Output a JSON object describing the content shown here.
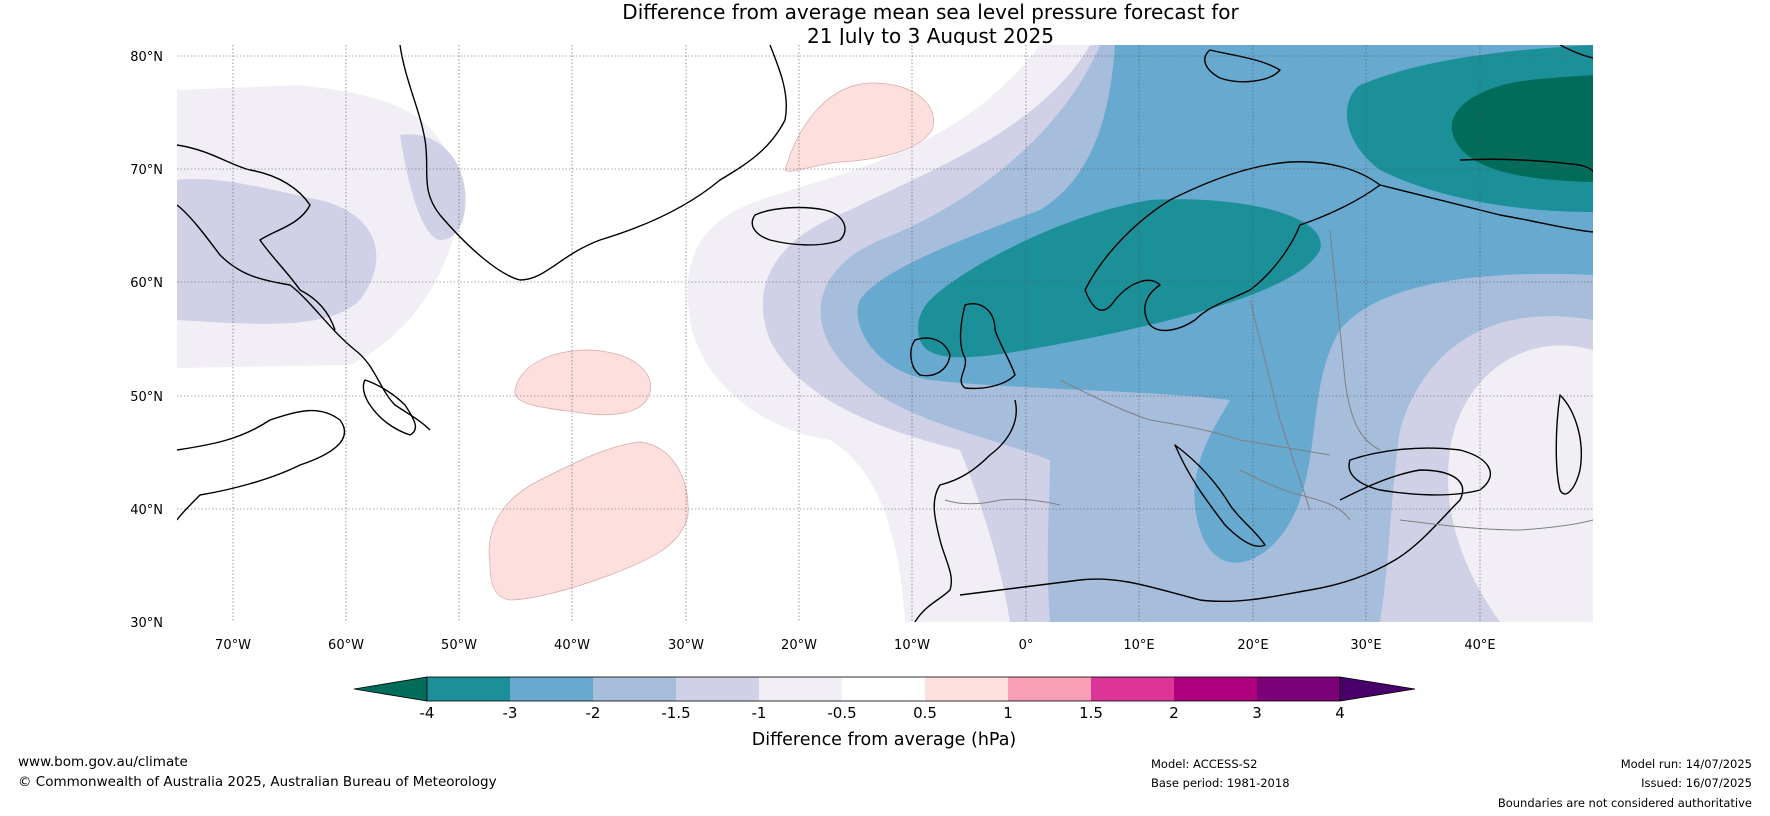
{
  "title": {
    "line1": "Difference from average mean sea level pressure forecast for",
    "line2": "21 July to 3 August 2025"
  },
  "axes": {
    "lon_ticks": [
      "70°W",
      "60°W",
      "50°W",
      "40°W",
      "30°W",
      "20°W",
      "10°W",
      "0°",
      "10°E",
      "20°E",
      "30°E",
      "40°E"
    ],
    "lat_ticks": [
      "80°N",
      "70°N",
      "60°N",
      "50°N",
      "40°N",
      "30°N"
    ],
    "lon_range": [
      -75,
      50
    ],
    "lat_range": [
      30,
      81
    ]
  },
  "colorbar": {
    "label": "Difference from average (hPa)",
    "ticks": [
      "-4",
      "-3",
      "-2",
      "-1.5",
      "-1",
      "-0.5",
      "0.5",
      "1",
      "1.5",
      "2",
      "3",
      "4"
    ],
    "colors": [
      "#016c59",
      "#1c9099",
      "#67a9cf",
      "#a6bddb",
      "#d0d1e6",
      "#f1eef6",
      "#ffffff",
      "#fde0dd",
      "#fa9fb5",
      "#dd3497",
      "#ae017e",
      "#7a0177",
      "#49006a"
    ]
  },
  "footer": {
    "website": "www.bom.gov.au/climate",
    "copyright": "© Commonwealth of Australia 2025, Australian Bureau of Meteorology",
    "model": "Model: ACCESS-S2",
    "base_period": "Base period: 1981-2018",
    "model_run": "Model run: 14/07/2025",
    "issued": "Issued: 16/07/2025",
    "disclaimer": "Boundaries are not considered authoritative"
  }
}
